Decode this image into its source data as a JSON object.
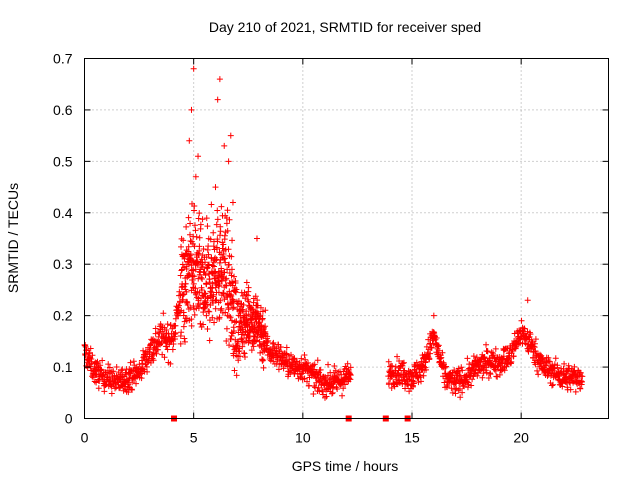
{
  "chart_data": {
    "type": "scatter",
    "title": "Day 210 of 2021, SRMTID for receiver sped",
    "xlabel": "GPS time / hours",
    "ylabel": "SRMTID / TECUs",
    "xlim": [
      0,
      24
    ],
    "ylim": [
      0,
      0.7
    ],
    "xticks": [
      0,
      5,
      10,
      15,
      20
    ],
    "xtick_labels": [
      "0",
      "5",
      "10",
      "15",
      "20"
    ],
    "yticks": [
      0,
      0.1,
      0.2,
      0.3,
      0.4,
      0.5,
      0.6,
      0.7
    ],
    "ytick_labels": [
      "0",
      "0.1",
      "0.2",
      "0.3",
      "0.4",
      "0.5",
      "0.6",
      "0.7"
    ],
    "grid": true,
    "marker": "+",
    "color": "#ff0000",
    "data_gap_markers_x": [
      4.1,
      12.1,
      13.8,
      14.8
    ],
    "profile": [
      [
        0.0,
        0.13
      ],
      [
        0.5,
        0.09
      ],
      [
        1.0,
        0.08
      ],
      [
        1.5,
        0.07
      ],
      [
        2.0,
        0.08
      ],
      [
        2.5,
        0.09
      ],
      [
        3.0,
        0.13
      ],
      [
        3.5,
        0.16
      ],
      [
        4.0,
        0.15
      ],
      [
        4.5,
        0.26
      ],
      [
        5.0,
        0.3
      ],
      [
        5.5,
        0.24
      ],
      [
        6.0,
        0.3
      ],
      [
        6.5,
        0.28
      ],
      [
        7.0,
        0.17
      ],
      [
        7.5,
        0.2
      ],
      [
        8.0,
        0.18
      ],
      [
        8.5,
        0.13
      ],
      [
        9.0,
        0.12
      ],
      [
        9.5,
        0.1
      ],
      [
        10.0,
        0.1
      ],
      [
        10.5,
        0.08
      ],
      [
        11.0,
        0.07
      ],
      [
        11.5,
        0.07
      ],
      [
        12.0,
        0.08
      ],
      [
        14.0,
        0.09
      ],
      [
        14.5,
        0.09
      ],
      [
        15.0,
        0.08
      ],
      [
        15.5,
        0.1
      ],
      [
        16.0,
        0.16
      ],
      [
        16.5,
        0.08
      ],
      [
        17.0,
        0.07
      ],
      [
        17.5,
        0.08
      ],
      [
        18.0,
        0.1
      ],
      [
        18.5,
        0.11
      ],
      [
        19.0,
        0.11
      ],
      [
        19.5,
        0.12
      ],
      [
        20.0,
        0.17
      ],
      [
        20.5,
        0.14
      ],
      [
        21.0,
        0.1
      ],
      [
        21.5,
        0.09
      ],
      [
        22.0,
        0.08
      ],
      [
        22.5,
        0.08
      ],
      [
        22.8,
        0.08
      ]
    ],
    "peaks": [
      [
        5.0,
        0.68
      ],
      [
        4.9,
        0.6
      ],
      [
        5.2,
        0.51
      ],
      [
        6.2,
        0.66
      ],
      [
        6.1,
        0.62
      ],
      [
        6.4,
        0.53
      ],
      [
        6.7,
        0.55
      ],
      [
        6.6,
        0.5
      ],
      [
        4.8,
        0.54
      ],
      [
        5.1,
        0.47
      ],
      [
        6.0,
        0.45
      ],
      [
        6.8,
        0.42
      ],
      [
        7.9,
        0.35
      ],
      [
        20.3,
        0.23
      ],
      [
        16.0,
        0.2
      ]
    ],
    "data_gap_hours": [
      12.2,
      13.9
    ]
  }
}
